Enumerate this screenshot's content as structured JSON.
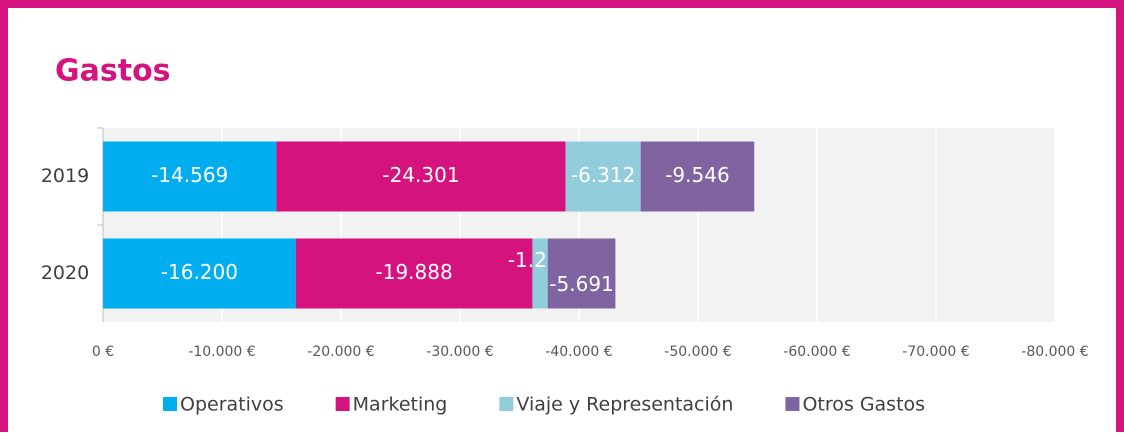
{
  "chart_data": {
    "type": "stacked-bar-horizontal",
    "title": "Gastos",
    "categories": [
      "2019",
      "2020"
    ],
    "series": [
      {
        "name": "Operativos",
        "color": "#00aeef",
        "values": [
          -14569,
          -16200
        ],
        "value_labels": [
          "-14.569",
          "-16.200"
        ]
      },
      {
        "name": "Marketing",
        "color": "#d5137f",
        "values": [
          -24301,
          -19888
        ],
        "value_labels": [
          "-24.301",
          "-19.888"
        ]
      },
      {
        "name": "Viaje y Representación",
        "color": "#92cddc",
        "values": [
          -6312,
          -1281
        ],
        "value_labels": [
          "-6.312",
          "-1.281"
        ]
      },
      {
        "name": "Otros Gastos",
        "color": "#8064a2",
        "values": [
          -9546,
          -5691
        ],
        "value_labels": [
          "-9.546",
          "-5.691"
        ]
      }
    ],
    "xlim": [
      0,
      -80000
    ],
    "xticks": [
      {
        "value": 0,
        "label": "0 €"
      },
      {
        "value": -10000,
        "label": "-10.000 €"
      },
      {
        "value": -20000,
        "label": "-20.000 €"
      },
      {
        "value": -30000,
        "label": "-30.000 €"
      },
      {
        "value": -40000,
        "label": "-40.000 €"
      },
      {
        "value": -50000,
        "label": "-50.000 €"
      },
      {
        "value": -60000,
        "label": "-60.000 €"
      },
      {
        "value": -70000,
        "label": "-70.000 €"
      },
      {
        "value": -80000,
        "label": "-80.000 €"
      }
    ],
    "grid": true,
    "legend": "bottom"
  }
}
